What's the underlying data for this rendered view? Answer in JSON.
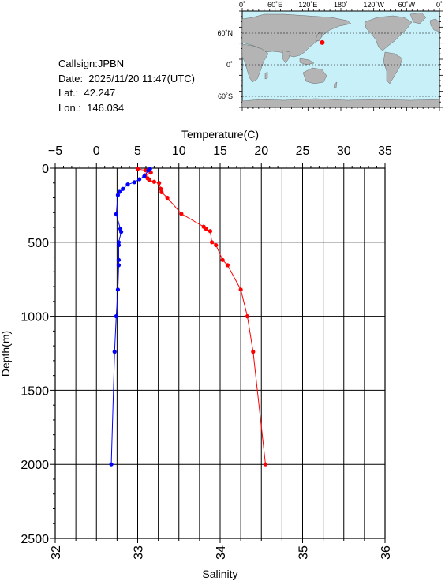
{
  "info": {
    "callsign": "Callsign:JPBN",
    "date": "Date:  2025/11/20 11:47(UTC)",
    "lat": "Lat.:  42.247",
    "lon": "Lon.:  146.034"
  },
  "map": {
    "top_labels": [
      "0˚",
      "60˚E",
      "120˚E",
      "180˚",
      "120˚W",
      "60˚W",
      "0˚"
    ],
    "lat_labels": [
      "60˚N",
      "0˚",
      "60˚S"
    ],
    "ocean_color": "#c8f0f8",
    "land_color": "#b4b4b4",
    "marker_color": "#ff0000",
    "marker_lon": 146.034,
    "marker_lat": 42.247
  },
  "chart_data": {
    "type": "line",
    "top_axis": {
      "label": "Temperature(C)",
      "range": [
        -5,
        35
      ],
      "ticks": [
        "−5",
        "0",
        "5",
        "10",
        "15",
        "20",
        "25",
        "30",
        "35"
      ]
    },
    "bottom_axis": {
      "label": "Salinity",
      "range": [
        32,
        36
      ],
      "ticks": [
        "32",
        "33",
        "34",
        "35",
        "36"
      ]
    },
    "left_axis": {
      "label": "Depth(m)",
      "range": [
        0,
        2500
      ],
      "inverted": true,
      "ticks": [
        "0",
        "500",
        "1000",
        "1500",
        "2000",
        "2500"
      ]
    },
    "grid": true,
    "series": [
      {
        "axis": "temperature",
        "color": "#ff0000",
        "points": [
          [
            5.0,
            5
          ],
          [
            6.0,
            15
          ],
          [
            6.6,
            30
          ],
          [
            5.9,
            48
          ],
          [
            6.2,
            68
          ],
          [
            6.4,
            80
          ],
          [
            7.0,
            92
          ],
          [
            7.6,
            100
          ],
          [
            7.8,
            140
          ],
          [
            7.9,
            162
          ],
          [
            8.6,
            200
          ],
          [
            10.3,
            308
          ],
          [
            13.0,
            395
          ],
          [
            13.3,
            410
          ],
          [
            13.8,
            425
          ],
          [
            14.0,
            500
          ],
          [
            14.5,
            520
          ],
          [
            15.3,
            620
          ],
          [
            15.9,
            655
          ],
          [
            17.5,
            820
          ],
          [
            18.3,
            1000
          ],
          [
            19.0,
            1240
          ],
          [
            20.5,
            2000
          ]
        ]
      },
      {
        "axis": "salinity",
        "color": "#0000ff",
        "points": [
          [
            33.15,
            5
          ],
          [
            33.13,
            15
          ],
          [
            33.08,
            55
          ],
          [
            33.02,
            75
          ],
          [
            32.96,
            95
          ],
          [
            32.88,
            110
          ],
          [
            32.82,
            140
          ],
          [
            32.78,
            160
          ],
          [
            32.76,
            182
          ],
          [
            32.74,
            310
          ],
          [
            32.79,
            410
          ],
          [
            32.8,
            430
          ],
          [
            32.77,
            500
          ],
          [
            32.77,
            520
          ],
          [
            32.77,
            620
          ],
          [
            32.77,
            655
          ],
          [
            32.76,
            820
          ],
          [
            32.74,
            1000
          ],
          [
            32.72,
            1240
          ],
          [
            32.68,
            2000
          ]
        ]
      }
    ]
  }
}
